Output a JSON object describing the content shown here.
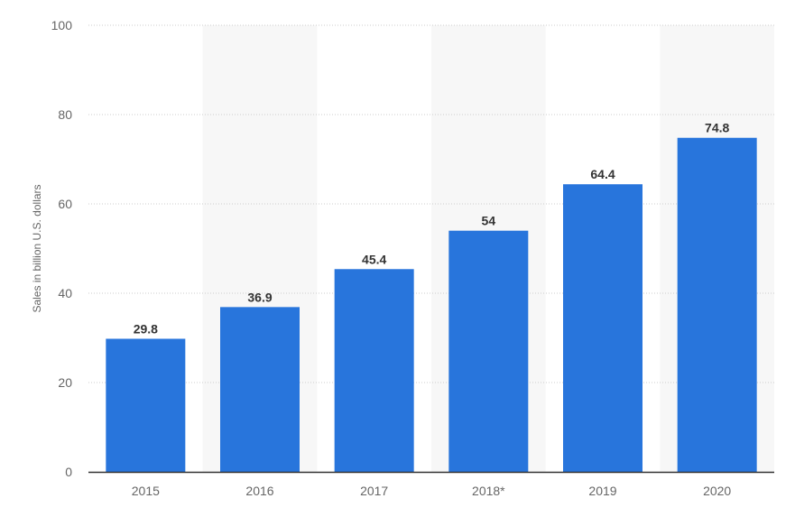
{
  "chart_data": {
    "type": "bar",
    "categories": [
      "2015",
      "2016",
      "2017",
      "2018*",
      "2019",
      "2020"
    ],
    "values": [
      29.8,
      36.9,
      45.4,
      54,
      64.4,
      74.8
    ],
    "data_labels": [
      "29.8",
      "36.9",
      "45.4",
      "54",
      "64.4",
      "74.8"
    ],
    "title": "",
    "xlabel": "",
    "ylabel": "Sales in billion U.S. dollars",
    "ylim": [
      0,
      100
    ],
    "yticks": [
      "0",
      "20",
      "40",
      "60",
      "80",
      "100"
    ],
    "grid": true,
    "legend": "none",
    "colors": {
      "bar": "#2875dc",
      "band": "#f7f7f7",
      "grid": "#cccccc",
      "axis": "#333333"
    }
  }
}
